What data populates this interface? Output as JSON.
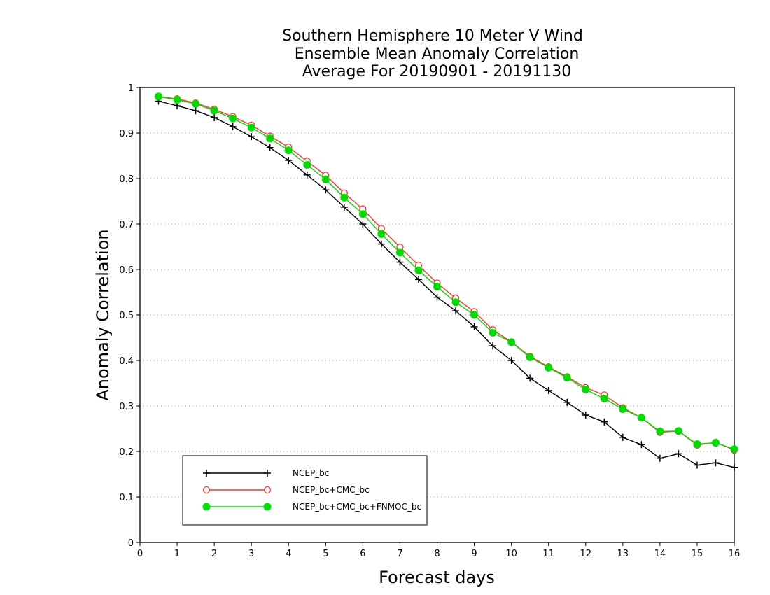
{
  "chart_data": {
    "type": "line",
    "title_lines": [
      "Southern Hemisphere 10 Meter V Wind",
      "Ensemble Mean Anomaly Correlation",
      "Average For 20190901 - 20191130"
    ],
    "xlabel": "Forecast days",
    "ylabel": "Anomaly Correlation",
    "xlim": [
      0,
      16
    ],
    "ylim": [
      0,
      1
    ],
    "xticks": [
      "0",
      "1",
      "2",
      "3",
      "4",
      "5",
      "6",
      "7",
      "8",
      "9",
      "10",
      "11",
      "12",
      "13",
      "14",
      "15",
      "16"
    ],
    "yticks": [
      "0",
      "0.1",
      "0.2",
      "0.3",
      "0.4",
      "0.5",
      "0.6",
      "0.7",
      "0.8",
      "0.9",
      "1"
    ],
    "grid": "dotted horizontal",
    "legend_position": "bottom-left",
    "x": [
      0.5,
      1,
      1.5,
      2,
      2.5,
      3,
      3.5,
      4,
      4.5,
      5,
      5.5,
      6,
      6.5,
      7,
      7.5,
      8,
      8.5,
      9,
      9.5,
      10,
      10.5,
      11,
      11.5,
      12,
      12.5,
      13,
      13.5,
      14,
      14.5,
      15,
      15.5,
      16
    ],
    "series": [
      {
        "name": "NCEP_bc",
        "color": "#000000",
        "marker": "plus",
        "values": [
          0.97,
          0.96,
          0.949,
          0.934,
          0.914,
          0.892,
          0.868,
          0.84,
          0.808,
          0.775,
          0.737,
          0.7,
          0.656,
          0.616,
          0.578,
          0.539,
          0.509,
          0.474,
          0.432,
          0.4,
          0.361,
          0.334,
          0.308,
          0.28,
          0.265,
          0.231,
          0.215,
          0.185,
          0.195,
          0.17,
          0.175,
          0.165
        ]
      },
      {
        "name": "NCEP_bc+CMC_bc",
        "color": "#ff3333",
        "marker": "open-circle",
        "values": [
          0.981,
          0.975,
          0.966,
          0.952,
          0.936,
          0.917,
          0.893,
          0.869,
          0.838,
          0.807,
          0.768,
          0.733,
          0.69,
          0.649,
          0.609,
          0.57,
          0.537,
          0.507,
          0.467,
          0.441,
          0.409,
          0.386,
          0.364,
          0.34,
          0.324,
          0.296,
          0.274,
          0.242,
          0.245,
          0.214,
          0.22,
          0.203
        ]
      },
      {
        "name": "NCEP_bc+CMC_bc+FNMOC_bc",
        "color": "#00dd00",
        "marker": "filled-circle",
        "values": [
          0.98,
          0.973,
          0.964,
          0.949,
          0.932,
          0.912,
          0.888,
          0.862,
          0.83,
          0.798,
          0.758,
          0.722,
          0.678,
          0.637,
          0.598,
          0.562,
          0.528,
          0.5,
          0.461,
          0.44,
          0.407,
          0.384,
          0.362,
          0.336,
          0.316,
          0.293,
          0.274,
          0.244,
          0.245,
          0.216,
          0.219,
          0.205
        ]
      }
    ]
  }
}
